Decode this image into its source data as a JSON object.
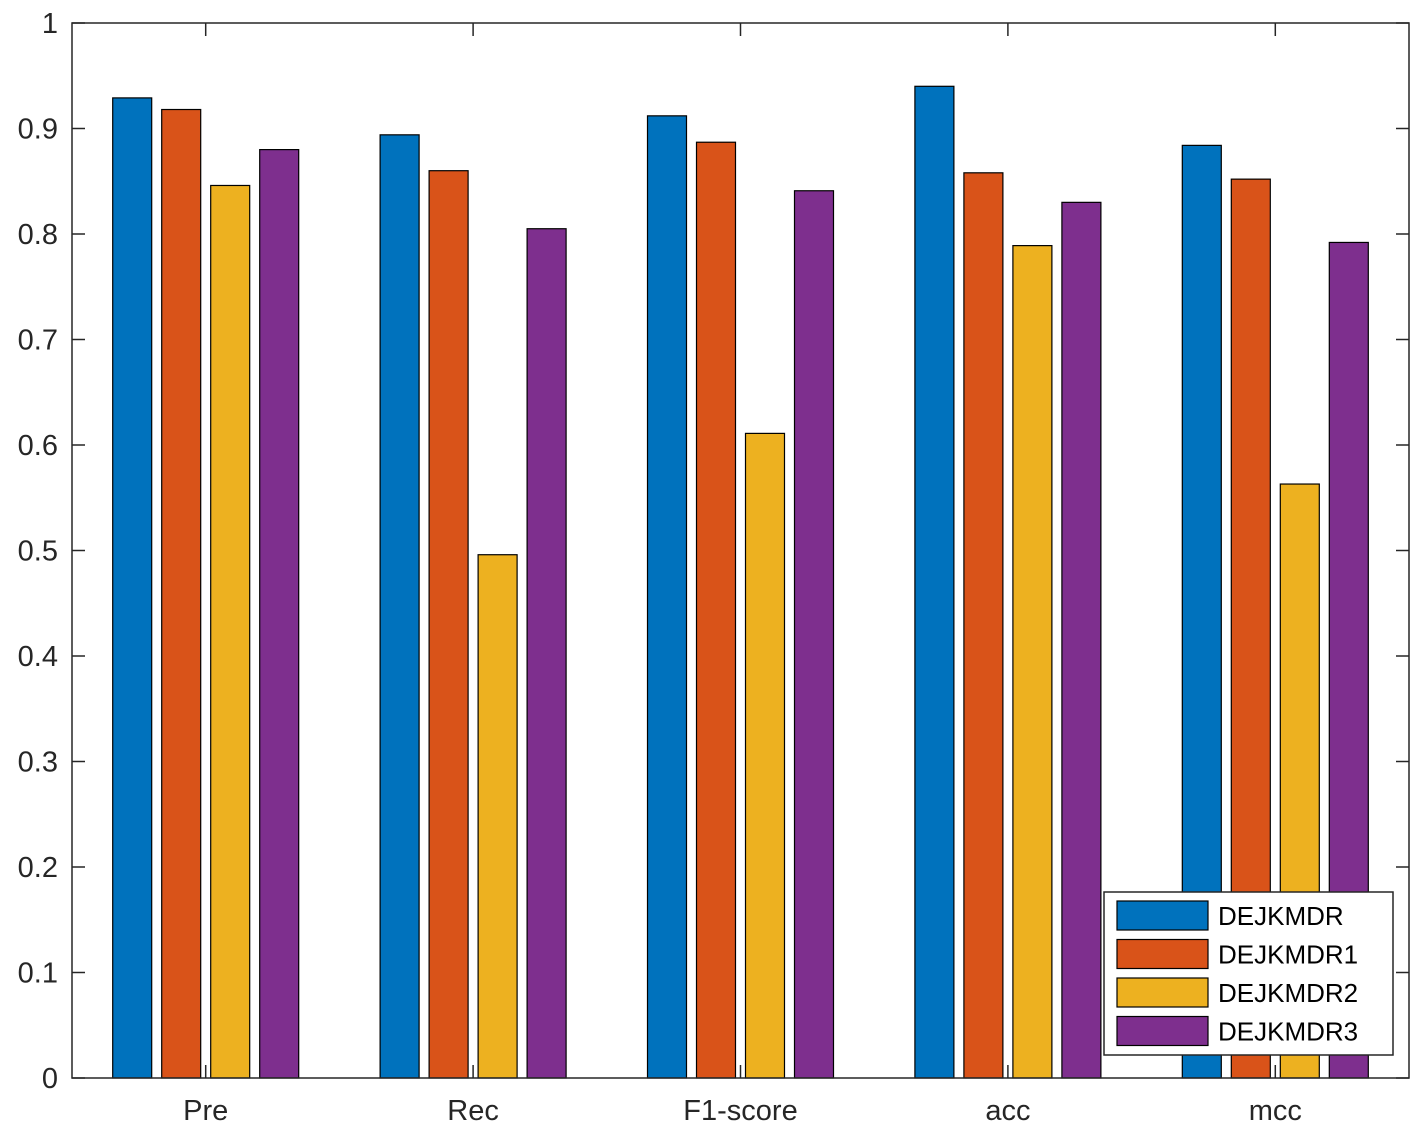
{
  "chart_data": {
    "type": "bar",
    "title": "",
    "xlabel": "",
    "ylabel": "",
    "categories": [
      "Pre",
      "Rec",
      "F1-score",
      "acc",
      "mcc"
    ],
    "ylim": [
      0,
      1
    ],
    "yticks": [
      0,
      0.1,
      0.2,
      0.3,
      0.4,
      0.5,
      0.6,
      0.7,
      0.8,
      0.9,
      1
    ],
    "ytick_labels": [
      "0",
      "0.1",
      "0.2",
      "0.3",
      "0.4",
      "0.5",
      "0.6",
      "0.7",
      "0.8",
      "0.9",
      "1"
    ],
    "grid": false,
    "legend_position": "bottom-right",
    "series": [
      {
        "name": "DEJKMDR",
        "color": "#0072BD",
        "values": [
          0.929,
          0.894,
          0.912,
          0.94,
          0.884
        ]
      },
      {
        "name": "DEJKMDR1",
        "color": "#D95319",
        "values": [
          0.918,
          0.86,
          0.887,
          0.858,
          0.852
        ]
      },
      {
        "name": "DEJKMDR2",
        "color": "#EDB120",
        "values": [
          0.846,
          0.496,
          0.611,
          0.789,
          0.563
        ]
      },
      {
        "name": "DEJKMDR3",
        "color": "#7E2F8E",
        "values": [
          0.88,
          0.805,
          0.841,
          0.83,
          0.792
        ]
      }
    ]
  }
}
